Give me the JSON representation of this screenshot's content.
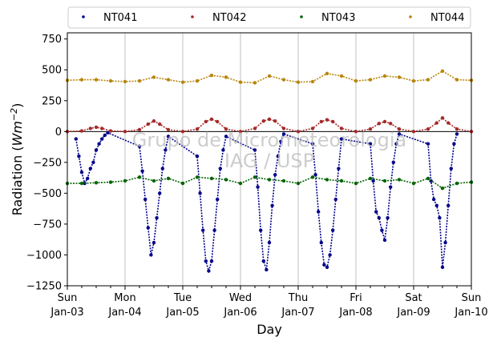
{
  "chart_data": {
    "type": "scatter",
    "xlabel": "Day",
    "ylabel": "Radiation (Wm⁻²)",
    "xlim": [
      0,
      7
    ],
    "ylim": [
      -1250,
      800
    ],
    "yticks": [
      -1250,
      -1000,
      -750,
      -500,
      -250,
      0,
      250,
      500,
      750
    ],
    "xticks": [
      {
        "x": 0,
        "day": "Sun",
        "date": "Jan-03"
      },
      {
        "x": 1,
        "day": "Mon",
        "date": "Jan-04"
      },
      {
        "x": 2,
        "day": "Tue",
        "date": "Jan-05"
      },
      {
        "x": 3,
        "day": "Wed",
        "date": "Jan-06"
      },
      {
        "x": 4,
        "day": "Thu",
        "date": "Jan-07"
      },
      {
        "x": 5,
        "day": "Fri",
        "date": "Jan-08"
      },
      {
        "x": 6,
        "day": "Sat",
        "date": "Jan-09"
      },
      {
        "x": 7,
        "day": "Sun",
        "date": "Jan-10"
      }
    ],
    "grid": "vertical",
    "legend_position": "top",
    "watermark": [
      "Grupo de Micrometeorologia",
      "IAG / USP"
    ],
    "series": [
      {
        "name": "NT041",
        "color": "#00008b",
        "x": [
          0.15,
          0.2,
          0.25,
          0.3,
          0.35,
          0.4,
          0.45,
          0.5,
          0.55,
          0.6,
          0.65,
          0.7,
          1.25,
          1.3,
          1.35,
          1.4,
          1.45,
          1.5,
          1.55,
          1.6,
          1.65,
          1.7,
          1.75,
          2.25,
          2.3,
          2.35,
          2.4,
          2.45,
          2.5,
          2.55,
          2.6,
          2.65,
          2.7,
          2.75,
          3.25,
          3.3,
          3.35,
          3.4,
          3.45,
          3.5,
          3.55,
          3.6,
          3.65,
          3.7,
          3.75,
          4.25,
          4.3,
          4.35,
          4.4,
          4.45,
          4.5,
          4.55,
          4.6,
          4.65,
          4.7,
          4.75,
          5.25,
          5.3,
          5.35,
          5.4,
          5.45,
          5.5,
          5.55,
          5.6,
          5.65,
          5.7,
          5.75,
          6.25,
          6.3,
          6.35,
          6.4,
          6.45,
          6.5,
          6.55,
          6.6,
          6.65,
          6.7,
          6.75
        ],
        "y": [
          -60,
          -200,
          -330,
          -420,
          -380,
          -300,
          -250,
          -150,
          -100,
          -60,
          -30,
          -10,
          -120,
          -320,
          -550,
          -780,
          -1000,
          -900,
          -700,
          -500,
          -300,
          -150,
          -40,
          -200,
          -500,
          -800,
          -1050,
          -1130,
          -1050,
          -800,
          -550,
          -300,
          -150,
          -40,
          -150,
          -450,
          -800,
          -1050,
          -1120,
          -900,
          -600,
          -350,
          -200,
          -80,
          -20,
          -100,
          -350,
          -650,
          -900,
          -1080,
          -1100,
          -1000,
          -800,
          -550,
          -300,
          -60,
          -100,
          -400,
          -650,
          -700,
          -800,
          -880,
          -700,
          -450,
          -250,
          -100,
          -20,
          -100,
          -400,
          -550,
          -600,
          -700,
          -1100,
          -900,
          -600,
          -300,
          -100,
          -20
        ]
      },
      {
        "name": "NT042",
        "color": "#a52a2a",
        "x": [
          0,
          0.25,
          0.4,
          0.5,
          0.6,
          0.75,
          1,
          1.25,
          1.4,
          1.5,
          1.6,
          1.75,
          2,
          2.25,
          2.4,
          2.5,
          2.6,
          2.75,
          3,
          3.25,
          3.4,
          3.5,
          3.6,
          3.75,
          4,
          4.25,
          4.4,
          4.5,
          4.6,
          4.75,
          5,
          5.25,
          5.4,
          5.5,
          5.6,
          5.75,
          6,
          6.25,
          6.4,
          6.5,
          6.6,
          6.75,
          7
        ],
        "y": [
          0,
          5,
          25,
          35,
          25,
          5,
          0,
          15,
          60,
          85,
          60,
          15,
          0,
          20,
          80,
          100,
          80,
          20,
          0,
          25,
          85,
          100,
          85,
          25,
          0,
          25,
          80,
          95,
          80,
          25,
          0,
          20,
          65,
          80,
          65,
          20,
          0,
          20,
          70,
          110,
          70,
          20,
          0
        ]
      },
      {
        "name": "NT043",
        "color": "#006400",
        "x": [
          0,
          0.25,
          0.5,
          0.75,
          1,
          1.25,
          1.5,
          1.75,
          2,
          2.25,
          2.5,
          2.75,
          3,
          3.25,
          3.5,
          3.75,
          4,
          4.25,
          4.5,
          4.75,
          5,
          5.25,
          5.5,
          5.75,
          6,
          6.25,
          6.5,
          6.75,
          7
        ],
        "y": [
          -420,
          -420,
          -415,
          -410,
          -400,
          -370,
          -400,
          -380,
          -420,
          -370,
          -380,
          -390,
          -420,
          -370,
          -390,
          -400,
          -420,
          -370,
          -390,
          -400,
          -420,
          -380,
          -400,
          -390,
          -420,
          -380,
          -460,
          -420,
          -410
        ]
      },
      {
        "name": "NT044",
        "color": "#b8860b",
        "x": [
          0,
          0.25,
          0.5,
          0.75,
          1,
          1.25,
          1.5,
          1.75,
          2,
          2.25,
          2.5,
          2.75,
          3,
          3.25,
          3.5,
          3.75,
          4,
          4.25,
          4.5,
          4.75,
          5,
          5.25,
          5.5,
          5.75,
          6,
          6.25,
          6.5,
          6.75,
          7
        ],
        "y": [
          415,
          420,
          420,
          410,
          405,
          410,
          440,
          420,
          400,
          410,
          455,
          440,
          400,
          395,
          450,
          420,
          400,
          405,
          470,
          450,
          410,
          420,
          450,
          440,
          410,
          420,
          490,
          420,
          415
        ]
      }
    ]
  }
}
